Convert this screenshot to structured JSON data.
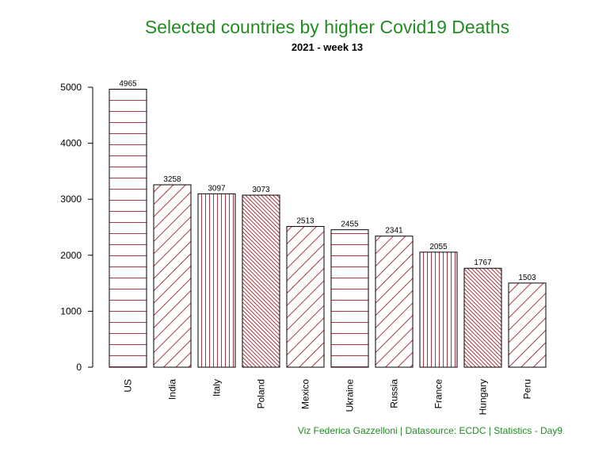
{
  "chart_data": {
    "type": "bar",
    "title": "Selected countries by higher Covid19 Deaths",
    "subtitle": "2021 - week 13",
    "categories": [
      "US",
      "India",
      "Italy",
      "Poland",
      "Mexico",
      "Ukraine",
      "Russia",
      "France",
      "Hungary",
      "Peru"
    ],
    "values": [
      4965,
      3258,
      3097,
      3073,
      2513,
      2455,
      2341,
      2055,
      1767,
      1503
    ],
    "hatch_angles": [
      0,
      45,
      90,
      135,
      45,
      0,
      45,
      90,
      135,
      45
    ],
    "ylim": [
      0,
      5000
    ],
    "yticks": [
      0,
      1000,
      2000,
      3000,
      4000,
      5000
    ],
    "xlabel": "",
    "ylabel": "",
    "bar_line_color": "#a3202c",
    "caption": "Viz Federica Gazzelloni | Datasource: ECDC | Statistics - Day9"
  },
  "colors": {
    "title": "#228B22",
    "hatch": "#a3202c",
    "outline": "#000000"
  }
}
